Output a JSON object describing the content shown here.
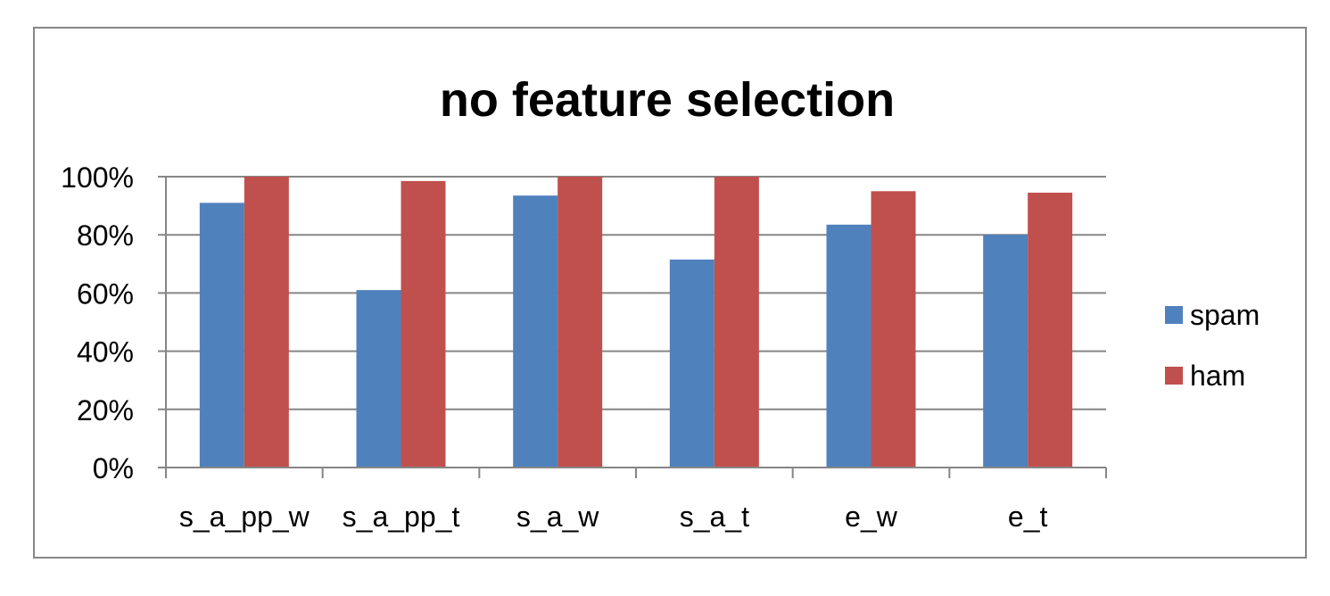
{
  "chart_data": {
    "type": "bar",
    "title": "no feature selection",
    "xlabel": "",
    "ylabel": "",
    "categories": [
      "s_a_pp_w",
      "s_a_pp_t",
      "s_a_w",
      "s_a_t",
      "e_w",
      "e_t"
    ],
    "series": [
      {
        "name": "spam",
        "color": "#4f81bd",
        "values": [
          91,
          61,
          93.5,
          71.5,
          83.5,
          80
        ]
      },
      {
        "name": "ham",
        "color": "#c0504d",
        "values": [
          100,
          98.5,
          100,
          100,
          95,
          94.5
        ]
      }
    ],
    "ylim": [
      0,
      100
    ],
    "yticks": [
      0,
      20,
      40,
      60,
      80,
      100
    ],
    "ytick_labels": [
      "0%",
      "20%",
      "40%",
      "60%",
      "80%",
      "100%"
    ],
    "grid": true,
    "legend_position": "right"
  }
}
